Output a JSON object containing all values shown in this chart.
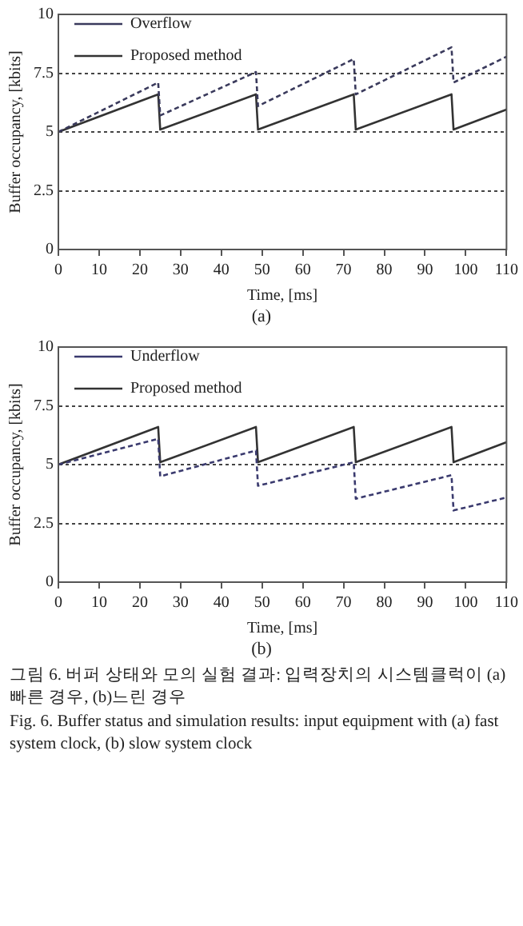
{
  "chart_data": [
    {
      "type": "line",
      "xlabel": "Time, [ms]",
      "ylabel": "Buffer occupancy, [kbits]",
      "xlim": [
        0,
        110
      ],
      "xticks": [
        0,
        10,
        20,
        30,
        40,
        50,
        60,
        70,
        80,
        90,
        100,
        110
      ],
      "ylim": [
        0,
        10
      ],
      "yticks": [
        0,
        2.5,
        5,
        7.5,
        10
      ],
      "grid": "y",
      "legend": "top left",
      "marker": "none",
      "series": [
        {
          "name": "Overflow",
          "color": "#3a3a5c",
          "line_style": "dashed",
          "x": [
            0,
            24.5,
            25,
            48.5,
            49,
            72.5,
            73,
            96.5,
            97,
            110
          ],
          "values": [
            5,
            7.1,
            5.7,
            7.55,
            6.1,
            8.1,
            6.6,
            8.6,
            7.1,
            8.2
          ]
        },
        {
          "name": "Proposed method",
          "color": "#333333",
          "line_style": "solid",
          "x": [
            0,
            24.5,
            25,
            48.5,
            49,
            72.5,
            73,
            96.5,
            97,
            110
          ],
          "values": [
            5,
            6.6,
            5.1,
            6.6,
            5.1,
            6.6,
            5.1,
            6.6,
            5.1,
            5.95
          ]
        }
      ],
      "annotations": [
        "(a)"
      ]
    },
    {
      "type": "line",
      "xlabel": "Time, [ms]",
      "ylabel": "Buffer occupancy, [kbits]",
      "xlim": [
        0,
        110
      ],
      "xticks": [
        0,
        10,
        20,
        30,
        40,
        50,
        60,
        70,
        80,
        90,
        100,
        110
      ],
      "ylim": [
        0,
        10
      ],
      "yticks": [
        0,
        2.5,
        5,
        7.5,
        10
      ],
      "grid": "y",
      "legend": "top left",
      "marker": "none",
      "series": [
        {
          "name": "Underflow",
          "color": "#3a3a6e",
          "line_style": "dashed",
          "x": [
            0,
            24.5,
            25,
            48.5,
            49,
            72.5,
            73,
            96.5,
            97,
            110
          ],
          "values": [
            5,
            6.1,
            4.5,
            5.6,
            4.1,
            5.1,
            3.55,
            4.55,
            3.05,
            3.6
          ]
        },
        {
          "name": "Proposed method",
          "color": "#333333",
          "line_style": "solid",
          "x": [
            0,
            24.5,
            25,
            48.5,
            49,
            72.5,
            73,
            96.5,
            97,
            110
          ],
          "values": [
            5,
            6.6,
            5.1,
            6.6,
            5.1,
            6.6,
            5.1,
            6.6,
            5.1,
            5.95
          ]
        }
      ],
      "annotations": [
        "(b)",
        "그림 6. 버퍼 상태와 모의 실험 결과: 입력장치의 시스템클럭이 (a)빠른 경우, (b)느린 경우",
        "Fig. 6. Buffer status and simulation results: input equipment with (a) fast system clock, (b) slow system clock"
      ]
    }
  ]
}
